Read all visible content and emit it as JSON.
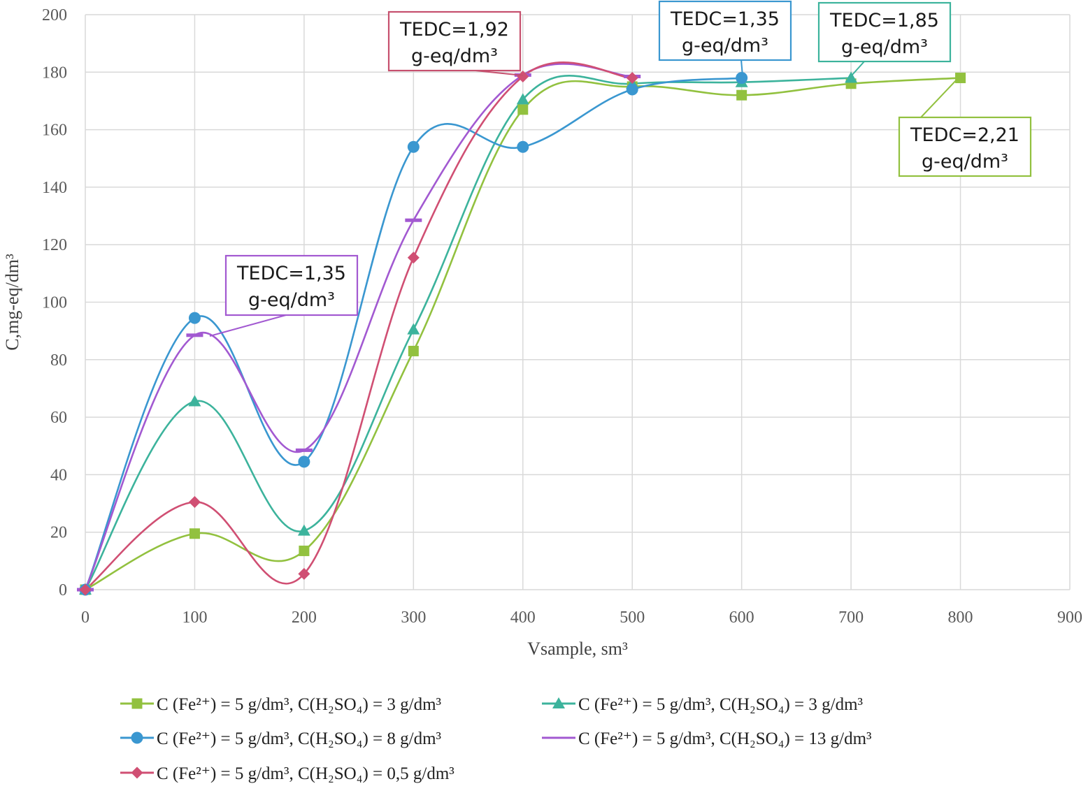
{
  "chart_data": {
    "type": "line",
    "title": "",
    "xlabel": "Vsample, sm³",
    "ylabel": "C,mg-eq/dm³",
    "xlim": [
      0,
      900
    ],
    "ylim": [
      0,
      200
    ],
    "x_ticks": [
      "0",
      "100",
      "200",
      "300",
      "400",
      "500",
      "600",
      "700",
      "800",
      "900"
    ],
    "y_ticks": [
      "0",
      "20",
      "40",
      "60",
      "80",
      "100",
      "120",
      "140",
      "160",
      "180",
      "200"
    ],
    "grid": true,
    "legend_position": "bottom",
    "series": [
      {
        "name": "C (Fe²⁺) = 5  g/dm³, C(H₂SO₄) = 3 g/dm³",
        "color": "#92c13f",
        "marker": "square",
        "x": [
          0,
          100,
          200,
          300,
          400,
          500,
          600,
          700,
          800
        ],
        "values": [
          0,
          19.5,
          13.5,
          83,
          167,
          175,
          172,
          176,
          178
        ]
      },
      {
        "name": "C (Fe²⁺) = 5 g/dm³, C(H₂SO₄) = 3 g/dm³",
        "color": "#3cb39c",
        "marker": "triangle",
        "x": [
          0,
          100,
          200,
          300,
          400,
          500,
          600,
          700
        ],
        "values": [
          0,
          65.5,
          20.5,
          90.5,
          170.5,
          176,
          176.5,
          178
        ]
      },
      {
        "name": "C (Fe²⁺) = 5 g/dm³, C(H₂SO₄) = 8 g/dm³",
        "color": "#3a97d0",
        "marker": "circle",
        "x": [
          0,
          100,
          200,
          300,
          400,
          500,
          600
        ],
        "values": [
          0,
          94.5,
          44.5,
          154,
          154,
          174,
          178
        ]
      },
      {
        "name": "C (Fe²⁺) = 5 g/dm³, C(H₂SO₄) = 13 g/dm³",
        "color": "#a259d1",
        "marker": "dash",
        "x": [
          0,
          100,
          200,
          300,
          400,
          500
        ],
        "values": [
          0,
          88.5,
          48.5,
          128.5,
          179,
          178.5
        ]
      },
      {
        "name": "C (Fe²⁺) = 5 g/dm³, C(H₂SO₄) = 0,5 g/dm³",
        "color": "#d04f73",
        "marker": "diamond",
        "x": [
          0,
          100,
          200,
          300,
          400,
          500
        ],
        "values": [
          0,
          30.5,
          5.5,
          115.5,
          178.5,
          178
        ]
      }
    ],
    "annotations": [
      {
        "line1": "TEDC=1,35",
        "line2": "g-eq/dm³",
        "series": 3,
        "point": [
          100,
          88.5
        ],
        "color": "#a259d1"
      },
      {
        "line1": "TEDC=1,92",
        "line2": "g-eq/dm³",
        "series": 4,
        "point": [
          400,
          178.5
        ],
        "color": "#c6506e"
      },
      {
        "line1": "TEDC=1,35",
        "line2": "g-eq/dm³",
        "series": 2,
        "point": [
          600,
          178
        ],
        "color": "#3a97d0"
      },
      {
        "line1": "TEDC=1,85",
        "line2": "g-eq/dm³",
        "series": 1,
        "point": [
          700,
          178
        ],
        "color": "#3cb39c"
      },
      {
        "line1": "TEDC=2,21",
        "line2": "g-eq/dm³",
        "series": 0,
        "point": [
          800,
          178
        ],
        "color": "#92c13f"
      }
    ]
  }
}
